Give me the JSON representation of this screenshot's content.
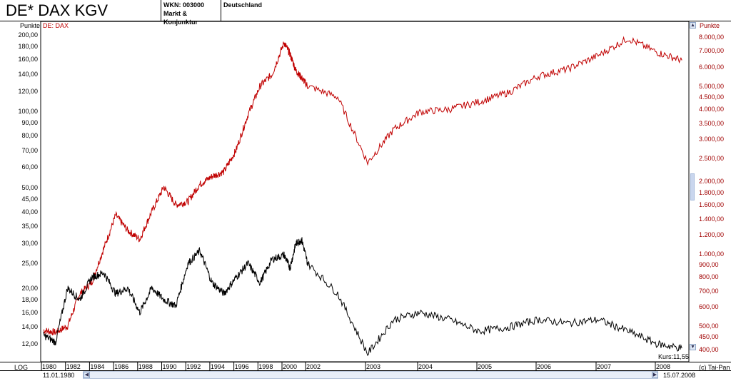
{
  "header": {
    "title": "DE* DAX KGV",
    "wkn": "WKN: 003000",
    "category": "Markt & Konjunktur",
    "country": "Deutschland"
  },
  "left_axis_label": "Punkte",
  "right_axis_label": "Punkte",
  "overlay_label": "DE: DAX",
  "scale_mode": "LOG",
  "current_value": "Kurs:11,55",
  "copyright": "(c) Tai-Pan",
  "date_start": "11.01.1980",
  "date_end": "15.07.2008",
  "colors": {
    "dax": "#c00000",
    "kgv": "#000000",
    "right_axis": "#a00000"
  },
  "chart_data": {
    "type": "line",
    "x_tick_labels": [
      "1980",
      "1982",
      "1984",
      "1986",
      "1988",
      "1990",
      "1992",
      "1994",
      "1996",
      "1998",
      "2000",
      "2002",
      "2003",
      "2004",
      "2005",
      "2006",
      "2007",
      "2008"
    ],
    "left_axis": {
      "scale": "log",
      "tick_labels": [
        "200,00",
        "180,00",
        "160,00",
        "140,00",
        "120,00",
        "100,00",
        "90,00",
        "80,00",
        "70,00",
        "60,00",
        "50,00",
        "45,00",
        "40,00",
        "35,00",
        "30,00",
        "25,00",
        "20,00",
        "18,00",
        "16,00",
        "14,00",
        "12,00"
      ]
    },
    "right_axis": {
      "scale": "log",
      "tick_labels": [
        "8.000,00",
        "7.000,00",
        "6.000,00",
        "5.000,00",
        "4.500,00",
        "4.000,00",
        "3.500,00",
        "3.000,00",
        "2.500,00",
        "2.000,00",
        "1.800,00",
        "1.600,00",
        "1.400,00",
        "1.200,00",
        "1.000,00",
        "900,00",
        "800,00",
        "700,00",
        "600,00",
        "500,00",
        "450,00",
        "400,00"
      ]
    },
    "series": [
      {
        "name": "DE: DAX",
        "axis": "right",
        "points": [
          [
            "1980",
            480
          ],
          [
            "1981",
            470
          ],
          [
            "1982",
            500
          ],
          [
            "1983",
            680
          ],
          [
            "1984",
            760
          ],
          [
            "1985",
            1050
          ],
          [
            "1986",
            1450
          ],
          [
            "1987",
            1250
          ],
          [
            "1988",
            1150
          ],
          [
            "1989",
            1500
          ],
          [
            "1990",
            1900
          ],
          [
            "1991",
            1600
          ],
          [
            "1992",
            1650
          ],
          [
            "1993",
            1950
          ],
          [
            "1994",
            2100
          ],
          [
            "1995",
            2200
          ],
          [
            "1996",
            2700
          ],
          [
            "1997",
            3800
          ],
          [
            "1998",
            5000
          ],
          [
            "1999",
            5600
          ],
          [
            "2000",
            7600
          ],
          [
            "2000.5",
            6800
          ],
          [
            "2001",
            5800
          ],
          [
            "2001.5",
            5400
          ],
          [
            "2002",
            5000
          ],
          [
            "2002.5",
            4500
          ],
          [
            "2003",
            2400
          ],
          [
            "2003.5",
            3300
          ],
          [
            "2004",
            3900
          ],
          [
            "2004.5",
            4000
          ],
          [
            "2005",
            4300
          ],
          [
            "2005.5",
            4700
          ],
          [
            "2006",
            5500
          ],
          [
            "2006.5",
            5900
          ],
          [
            "2007",
            6700
          ],
          [
            "2007.5",
            7900
          ],
          [
            "2008",
            6900
          ],
          [
            "2008.5",
            6400
          ]
        ]
      },
      {
        "name": "KGV",
        "axis": "left",
        "points": [
          [
            "1980",
            13
          ],
          [
            "1981",
            12.2
          ],
          [
            "1982",
            20
          ],
          [
            "1983",
            18
          ],
          [
            "1984",
            22
          ],
          [
            "1985",
            23
          ],
          [
            "1986",
            19
          ],
          [
            "1987",
            20
          ],
          [
            "1988",
            16
          ],
          [
            "1989",
            20
          ],
          [
            "1990",
            18
          ],
          [
            "1991",
            17
          ],
          [
            "1992",
            25
          ],
          [
            "1993",
            28
          ],
          [
            "1994",
            21
          ],
          [
            "1995",
            19
          ],
          [
            "1996",
            22
          ],
          [
            "1997",
            25
          ],
          [
            "1998",
            21
          ],
          [
            "1999",
            26
          ],
          [
            "2000",
            27
          ],
          [
            "2000.5",
            24
          ],
          [
            "2001",
            30
          ],
          [
            "2001.5",
            31
          ],
          [
            "2002",
            25
          ],
          [
            "2002.5",
            19
          ],
          [
            "2003",
            11
          ],
          [
            "2003.5",
            15
          ],
          [
            "2004",
            16
          ],
          [
            "2004.5",
            15
          ],
          [
            "2005",
            13.5
          ],
          [
            "2005.5",
            14
          ],
          [
            "2006",
            15
          ],
          [
            "2006.5",
            14.5
          ],
          [
            "2007",
            15
          ],
          [
            "2007.5",
            13.5
          ],
          [
            "2008",
            12
          ],
          [
            "2008.5",
            11.55
          ]
        ]
      }
    ]
  }
}
